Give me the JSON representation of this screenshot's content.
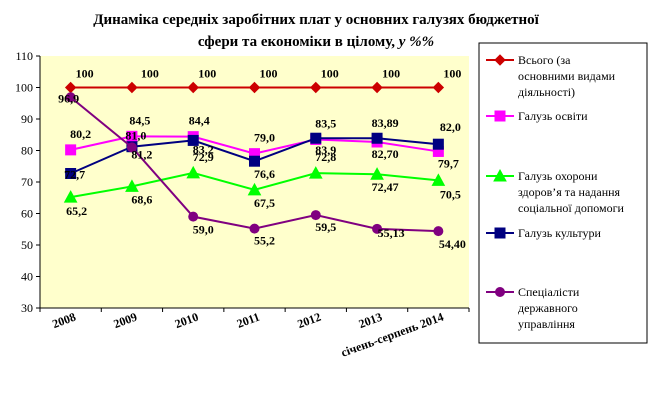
{
  "chart_data": {
    "type": "line",
    "title_line1": "Динаміка середніх заробітних плат у основних галузях бюджетної",
    "title_line2_plain": "сфери та економіки в цілому,",
    "title_line2_unit": " у %%",
    "categories": [
      "2008",
      "2009",
      "2010",
      "2011",
      "2012",
      "2013",
      "січень-серпень 2014"
    ],
    "ylim": [
      30,
      110
    ],
    "yticks": [
      "30",
      "40",
      "50",
      "60",
      "70",
      "80",
      "90",
      "100",
      "110"
    ],
    "grid": false,
    "legend_position": "right",
    "series": [
      {
        "name": "Всього (за основними видами діяльності)",
        "legend_lines": [
          "Всього (за",
          "основними видами",
          "діяльності)"
        ],
        "color": "#cc0000",
        "marker": "diamond",
        "values": [
          100,
          100,
          100,
          100,
          100,
          100,
          100
        ],
        "labels": [
          "100",
          "100",
          "100",
          "100",
          "100",
          "100",
          "100"
        ]
      },
      {
        "name": "Галузь освіти",
        "legend_lines": [
          "Галузь освіти"
        ],
        "color": "#ff00ff",
        "marker": "square",
        "values": [
          80.2,
          84.5,
          84.4,
          79.0,
          83.5,
          82.7,
          79.7
        ],
        "labels": [
          "80,2",
          "84,5",
          "84,4",
          "79,0",
          "83,5",
          "82,70",
          "79,7"
        ]
      },
      {
        "name": "Галузь охорони здоров’я та надання соціальної допомоги",
        "legend_lines": [
          "Галузь охорони",
          "здоров’я та надання",
          "соціальної допомоги"
        ],
        "color": "#00ff00",
        "marker": "triangle",
        "values": [
          65.2,
          68.6,
          72.9,
          67.5,
          72.8,
          72.47,
          70.5
        ],
        "labels": [
          "65,2",
          "68,6",
          "72,9",
          "67,5",
          "72,8",
          "72,47",
          "70,5"
        ]
      },
      {
        "name": "Галузь культури",
        "legend_lines": [
          "Галузь культури"
        ],
        "color": "#000080",
        "marker": "square",
        "values": [
          72.7,
          81.2,
          83.2,
          76.6,
          83.9,
          83.89,
          82.0
        ],
        "labels": [
          "72,7",
          "81,2",
          "83,2",
          "76,6",
          "83,9",
          "83,89",
          "82,0"
        ]
      },
      {
        "name": "Спеціалісти державного управління",
        "legend_lines": [
          "Спеціалісти",
          "державного",
          "управління"
        ],
        "color": "#800080",
        "marker": "circle",
        "values": [
          96.9,
          81.0,
          59.0,
          55.2,
          59.5,
          55.13,
          54.4
        ],
        "labels": [
          "96,9",
          "81,0",
          "59,0",
          "55,2",
          "59,5",
          "55,13",
          "54,40"
        ]
      }
    ],
    "colors": {
      "plot_background": "#ffffcc",
      "axis": "#000000"
    }
  }
}
